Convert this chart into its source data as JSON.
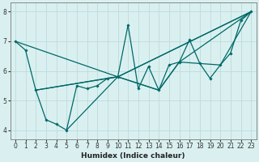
{
  "xlabel": "Humidex (Indice chaleur)",
  "bg_color": "#daf0f0",
  "grid_color": "#c0dede",
  "line_color": "#006868",
  "xlim": [
    -0.5,
    23.5
  ],
  "ylim": [
    3.7,
    8.3
  ],
  "xticks": [
    0,
    1,
    2,
    3,
    4,
    5,
    6,
    7,
    8,
    9,
    10,
    11,
    12,
    13,
    14,
    15,
    16,
    17,
    18,
    19,
    20,
    21,
    22,
    23
  ],
  "yticks": [
    4,
    5,
    6,
    7,
    8
  ],
  "series": [
    {
      "x": [
        0,
        1,
        2,
        3,
        4,
        5,
        6,
        7,
        8,
        9,
        10,
        11,
        12,
        13,
        14,
        15,
        16,
        17,
        18,
        19,
        20,
        21,
        22,
        23
      ],
      "y": [
        7.0,
        6.7,
        5.35,
        4.35,
        4.2,
        4.0,
        5.5,
        5.4,
        5.5,
        5.75,
        5.8,
        7.55,
        5.4,
        6.15,
        5.35,
        6.2,
        6.3,
        7.05,
        6.25,
        5.75,
        6.2,
        6.6,
        7.7,
        8.0
      ]
    },
    {
      "x": [
        0,
        10,
        23
      ],
      "y": [
        7.0,
        5.8,
        8.0
      ]
    },
    {
      "x": [
        2,
        10,
        23
      ],
      "y": [
        5.35,
        5.8,
        8.0
      ]
    },
    {
      "x": [
        2,
        9,
        10,
        14,
        16,
        20,
        23
      ],
      "y": [
        5.35,
        5.75,
        5.8,
        5.35,
        6.3,
        6.2,
        8.0
      ]
    },
    {
      "x": [
        5,
        10,
        14,
        16,
        23
      ],
      "y": [
        4.0,
        5.8,
        5.35,
        6.3,
        8.0
      ]
    }
  ]
}
